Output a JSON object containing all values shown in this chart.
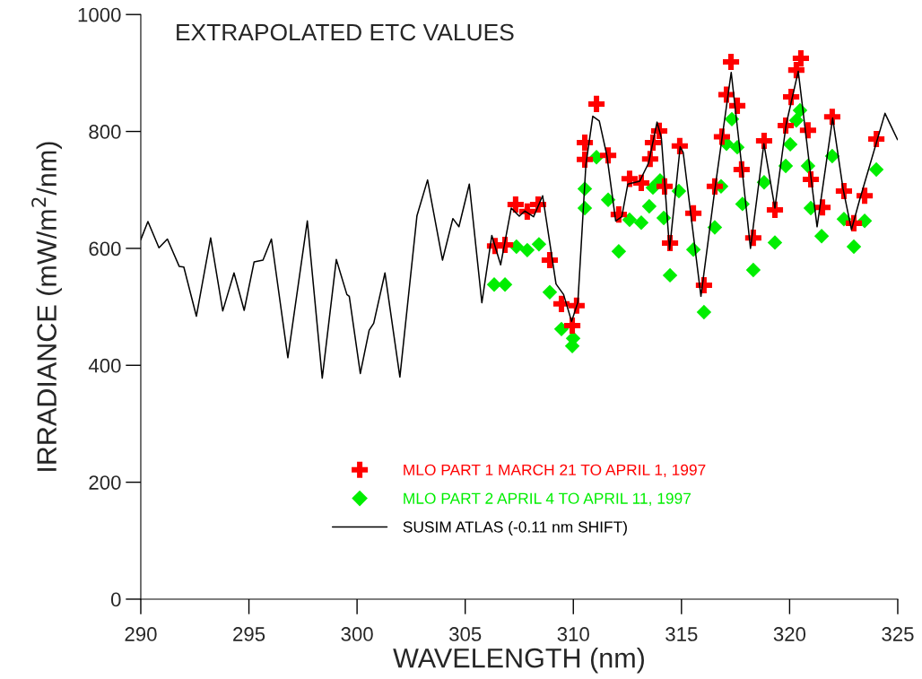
{
  "chart_data": {
    "type": "scatter",
    "title": "EXTRAPOLATED ETC VALUES",
    "xlabel": "WAVELENGTH (nm)",
    "ylabel": "IRRADIANCE (mW/m$^{2}$/nm)",
    "xlim": [
      290,
      325
    ],
    "ylim": [
      0,
      1000
    ],
    "xticks": [
      290,
      295,
      300,
      305,
      310,
      315,
      320,
      325
    ],
    "yticks": [
      0,
      200,
      400,
      600,
      800,
      1000
    ],
    "grid": false,
    "legend": "bottom",
    "series": [
      {
        "name": "MLO PART 1 MARCH 21 TO APRIL 1, 1997",
        "type": "scatter",
        "marker": "cross",
        "color": "#ff0000",
        "x": [
          306.38,
          306.84,
          307.33,
          307.87,
          308.37,
          308.91,
          309.45,
          309.95,
          310.15,
          310.53,
          310.53,
          311.07,
          311.61,
          312.1,
          312.6,
          313.14,
          313.55,
          313.68,
          313.97,
          314.22,
          314.47,
          314.92,
          315.55,
          316.04,
          316.54,
          316.87,
          317.08,
          317.29,
          317.58,
          317.78,
          318.32,
          318.82,
          319.32,
          319.82,
          320.07,
          320.31,
          320.52,
          320.85,
          320.98,
          321.52,
          321.97,
          322.51,
          322.97,
          323.47,
          324.01
        ],
        "values": [
          604,
          606,
          675,
          663,
          675,
          580,
          505,
          468,
          502,
          752,
          781,
          847,
          759,
          658,
          719,
          712,
          753,
          781,
          801,
          706,
          609,
          775,
          660,
          537,
          706,
          791,
          863,
          919,
          844,
          735,
          618,
          784,
          666,
          810,
          859,
          905,
          925,
          802,
          718,
          670,
          825,
          698,
          643,
          690,
          787
        ]
      },
      {
        "name": "MLO PART 2 APRIL 4 TO APRIL 11, 1997",
        "type": "scatter",
        "marker": "diamond",
        "color": "#00ee00",
        "x": [
          306.34,
          306.84,
          307.37,
          307.87,
          308.41,
          308.91,
          309.45,
          309.99,
          309.95,
          310.53,
          310.53,
          311.07,
          311.61,
          312.1,
          312.6,
          313.14,
          313.51,
          313.68,
          314.01,
          314.18,
          314.47,
          314.88,
          315.55,
          316.04,
          316.54,
          316.83,
          317.08,
          317.33,
          317.58,
          317.82,
          318.32,
          318.82,
          319.32,
          319.82,
          320.03,
          320.31,
          320.48,
          320.85,
          320.98,
          321.48,
          321.97,
          322.51,
          322.97,
          323.47,
          324.01
        ],
        "values": [
          538,
          538,
          603,
          597,
          607,
          525,
          462,
          446,
          433,
          669,
          702,
          756,
          683,
          595,
          649,
          644,
          672,
          704,
          716,
          652,
          554,
          698,
          598,
          491,
          636,
          706,
          779,
          821,
          773,
          676,
          563,
          713,
          610,
          741,
          778,
          819,
          836,
          741,
          669,
          621,
          758,
          650,
          603,
          647,
          735
        ]
      },
      {
        "name": "SUSIM ATLAS (-0.11 nm SHIFT)",
        "type": "line",
        "marker": "none",
        "line_style": "solid",
        "color": "#000000",
        "x": [
          290.0,
          290.33,
          290.84,
          291.23,
          291.78,
          291.99,
          292.57,
          293.23,
          293.79,
          294.31,
          294.78,
          295.24,
          295.65,
          296.04,
          296.8,
          297.7,
          298.39,
          299.04,
          299.53,
          299.64,
          300.15,
          300.56,
          300.77,
          301.29,
          301.98,
          302.77,
          303.26,
          303.95,
          304.43,
          304.71,
          305.19,
          305.77,
          306.23,
          306.64,
          307.13,
          307.5,
          307.75,
          308.16,
          308.58,
          309.2,
          309.55,
          309.92,
          310.21,
          310.58,
          310.9,
          311.2,
          311.55,
          311.96,
          312.24,
          312.52,
          313.07,
          313.48,
          313.87,
          314.07,
          314.45,
          314.94,
          315.08,
          315.9,
          316.53,
          317.3,
          317.8,
          318.19,
          318.81,
          319.32,
          319.84,
          320.4,
          320.95,
          321.27,
          321.99,
          322.47,
          322.86,
          323.23,
          324.41,
          324.99
        ],
        "values": [
          615,
          646,
          601,
          616,
          569,
          568,
          484,
          618,
          493,
          558,
          494,
          577,
          580,
          616,
          413,
          647,
          378,
          581,
          521,
          518,
          386,
          460,
          472,
          558,
          380,
          656,
          717,
          580,
          651,
          637,
          710,
          507,
          622,
          572,
          669,
          655,
          664,
          654,
          690,
          539,
          521,
          475,
          508,
          743,
          826,
          818,
          759,
          647,
          654,
          710,
          715,
          746,
          816,
          789,
          598,
          774,
          764,
          518,
          697,
          901,
          736,
          600,
          779,
          669,
          812,
          903,
          733,
          637,
          823,
          702,
          632,
          682,
          831,
          786
        ]
      }
    ]
  }
}
